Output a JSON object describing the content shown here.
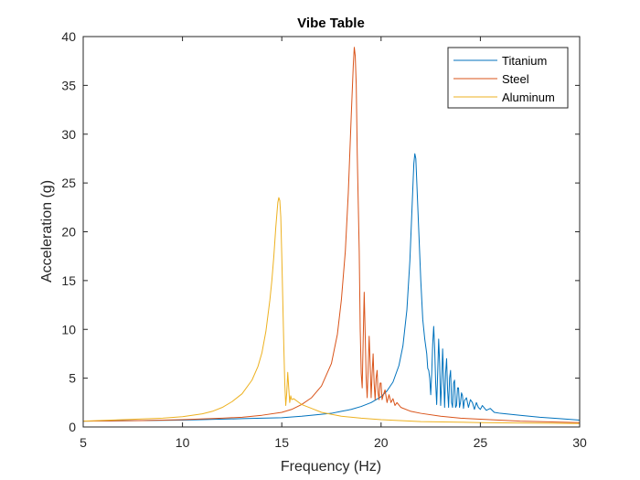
{
  "chart_data": {
    "type": "line",
    "title": "Vibe Table",
    "xlabel": "Frequency (Hz)",
    "ylabel": "Acceleration (g)",
    "xlim": [
      5,
      30
    ],
    "ylim": [
      0,
      40
    ],
    "xticks": [
      5,
      10,
      15,
      20,
      25,
      30
    ],
    "yticks": [
      0,
      5,
      10,
      15,
      20,
      25,
      30,
      35,
      40
    ],
    "grid": false,
    "legend_position": "top-right",
    "series": [
      {
        "name": "Titanium",
        "color": "#0072BD",
        "points": [
          [
            5.0,
            0.6
          ],
          [
            10.0,
            0.7
          ],
          [
            13.0,
            0.85
          ],
          [
            15.0,
            0.95
          ],
          [
            16.0,
            1.1
          ],
          [
            17.0,
            1.3
          ],
          [
            17.5,
            1.4
          ],
          [
            18.0,
            1.6
          ],
          [
            18.5,
            1.8
          ],
          [
            19.0,
            2.1
          ],
          [
            19.5,
            2.5
          ],
          [
            20.0,
            3.1
          ],
          [
            20.3,
            3.7
          ],
          [
            20.6,
            4.6
          ],
          [
            20.9,
            6.3
          ],
          [
            21.1,
            8.3
          ],
          [
            21.3,
            12.0
          ],
          [
            21.45,
            17.0
          ],
          [
            21.55,
            22.0
          ],
          [
            21.65,
            27.0
          ],
          [
            21.7,
            28.0
          ],
          [
            21.75,
            27.5
          ],
          [
            21.8,
            25.0
          ],
          [
            21.9,
            20.0
          ],
          [
            22.0,
            15.0
          ],
          [
            22.1,
            11.0
          ],
          [
            22.2,
            9.0
          ],
          [
            22.3,
            7.5
          ],
          [
            22.35,
            6.0
          ],
          [
            22.4,
            5.8
          ],
          [
            22.45,
            5.0
          ],
          [
            22.5,
            3.3
          ],
          [
            22.55,
            5.5
          ],
          [
            22.6,
            8.5
          ],
          [
            22.65,
            10.3
          ],
          [
            22.7,
            8.0
          ],
          [
            22.75,
            4.5
          ],
          [
            22.8,
            2.3
          ],
          [
            22.85,
            5.5
          ],
          [
            22.9,
            9.0
          ],
          [
            22.95,
            6.5
          ],
          [
            23.0,
            2.2
          ],
          [
            23.05,
            4.5
          ],
          [
            23.1,
            8.0
          ],
          [
            23.15,
            5.0
          ],
          [
            23.2,
            2.0
          ],
          [
            23.25,
            5.5
          ],
          [
            23.3,
            7.0
          ],
          [
            23.35,
            3.8
          ],
          [
            23.4,
            2.0
          ],
          [
            23.45,
            5.0
          ],
          [
            23.5,
            5.8
          ],
          [
            23.55,
            2.5
          ],
          [
            23.6,
            2.0
          ],
          [
            23.65,
            4.5
          ],
          [
            23.7,
            4.8
          ],
          [
            23.75,
            2.0
          ],
          [
            23.8,
            2.2
          ],
          [
            23.85,
            4.0
          ],
          [
            23.9,
            4.0
          ],
          [
            23.95,
            2.0
          ],
          [
            24.0,
            2.5
          ],
          [
            24.05,
            3.5
          ],
          [
            24.1,
            3.2
          ],
          [
            24.15,
            1.9
          ],
          [
            24.2,
            2.7
          ],
          [
            24.3,
            3.0
          ],
          [
            24.4,
            2.0
          ],
          [
            24.5,
            2.8
          ],
          [
            24.6,
            2.5
          ],
          [
            24.7,
            1.8
          ],
          [
            24.8,
            2.5
          ],
          [
            24.9,
            2.0
          ],
          [
            25.0,
            1.8
          ],
          [
            25.1,
            2.2
          ],
          [
            25.3,
            1.7
          ],
          [
            25.5,
            1.9
          ],
          [
            25.7,
            1.5
          ],
          [
            26.0,
            1.4
          ],
          [
            27.0,
            1.2
          ],
          [
            28.0,
            1.0
          ],
          [
            29.0,
            0.85
          ],
          [
            30.0,
            0.7
          ]
        ]
      },
      {
        "name": "Steel",
        "color": "#D95319",
        "points": [
          [
            5.0,
            0.6
          ],
          [
            8.0,
            0.65
          ],
          [
            10.0,
            0.75
          ],
          [
            12.0,
            0.9
          ],
          [
            13.0,
            1.0
          ],
          [
            14.0,
            1.2
          ],
          [
            15.0,
            1.5
          ],
          [
            15.5,
            1.8
          ],
          [
            16.0,
            2.3
          ],
          [
            16.5,
            3.0
          ],
          [
            17.0,
            4.2
          ],
          [
            17.5,
            6.5
          ],
          [
            17.8,
            9.5
          ],
          [
            18.0,
            13.0
          ],
          [
            18.2,
            18.0
          ],
          [
            18.35,
            24.0
          ],
          [
            18.5,
            32.0
          ],
          [
            18.6,
            37.0
          ],
          [
            18.65,
            38.9
          ],
          [
            18.7,
            38.0
          ],
          [
            18.75,
            35.0
          ],
          [
            18.8,
            28.0
          ],
          [
            18.9,
            18.0
          ],
          [
            18.95,
            10.0
          ],
          [
            19.0,
            5.5
          ],
          [
            19.05,
            4.0
          ],
          [
            19.1,
            9.0
          ],
          [
            19.15,
            13.8
          ],
          [
            19.2,
            9.5
          ],
          [
            19.25,
            5.0
          ],
          [
            19.3,
            3.0
          ],
          [
            19.35,
            6.0
          ],
          [
            19.4,
            9.3
          ],
          [
            19.45,
            6.5
          ],
          [
            19.5,
            3.0
          ],
          [
            19.55,
            5.5
          ],
          [
            19.6,
            7.5
          ],
          [
            19.65,
            4.5
          ],
          [
            19.7,
            2.8
          ],
          [
            19.75,
            5.0
          ],
          [
            19.8,
            5.8
          ],
          [
            19.85,
            3.5
          ],
          [
            19.9,
            2.8
          ],
          [
            19.95,
            4.5
          ],
          [
            20.0,
            4.5
          ],
          [
            20.05,
            2.8
          ],
          [
            20.1,
            3.2
          ],
          [
            20.2,
            3.8
          ],
          [
            20.3,
            2.5
          ],
          [
            20.4,
            3.3
          ],
          [
            20.5,
            2.5
          ],
          [
            20.6,
            2.9
          ],
          [
            20.7,
            2.2
          ],
          [
            20.8,
            2.5
          ],
          [
            21.0,
            2.0
          ],
          [
            21.5,
            1.6
          ],
          [
            22.0,
            1.4
          ],
          [
            23.0,
            1.1
          ],
          [
            24.0,
            0.9
          ],
          [
            25.0,
            0.8
          ],
          [
            27.0,
            0.6
          ],
          [
            30.0,
            0.45
          ]
        ]
      },
      {
        "name": "Aluminum",
        "color": "#EDB120",
        "points": [
          [
            5.0,
            0.6
          ],
          [
            7.0,
            0.75
          ],
          [
            9.0,
            0.9
          ],
          [
            10.0,
            1.05
          ],
          [
            11.0,
            1.35
          ],
          [
            11.5,
            1.6
          ],
          [
            12.0,
            2.0
          ],
          [
            12.5,
            2.6
          ],
          [
            13.0,
            3.4
          ],
          [
            13.5,
            4.8
          ],
          [
            13.8,
            6.2
          ],
          [
            14.0,
            7.6
          ],
          [
            14.2,
            9.8
          ],
          [
            14.4,
            13.0
          ],
          [
            14.5,
            15.0
          ],
          [
            14.6,
            17.5
          ],
          [
            14.7,
            20.5
          ],
          [
            14.8,
            23.0
          ],
          [
            14.85,
            23.5
          ],
          [
            14.9,
            23.2
          ],
          [
            14.95,
            21.5
          ],
          [
            15.0,
            17.5
          ],
          [
            15.05,
            13.0
          ],
          [
            15.1,
            8.5
          ],
          [
            15.15,
            4.5
          ],
          [
            15.2,
            2.2
          ],
          [
            15.25,
            3.5
          ],
          [
            15.3,
            5.6
          ],
          [
            15.35,
            4.0
          ],
          [
            15.4,
            2.5
          ],
          [
            15.45,
            3.2
          ],
          [
            15.5,
            2.8
          ],
          [
            15.6,
            2.9
          ],
          [
            15.8,
            2.6
          ],
          [
            16.0,
            2.3
          ],
          [
            16.5,
            1.9
          ],
          [
            17.0,
            1.5
          ],
          [
            18.0,
            1.1
          ],
          [
            19.0,
            0.9
          ],
          [
            20.0,
            0.75
          ],
          [
            22.0,
            0.55
          ],
          [
            25.0,
            0.45
          ],
          [
            30.0,
            0.35
          ]
        ]
      }
    ]
  }
}
